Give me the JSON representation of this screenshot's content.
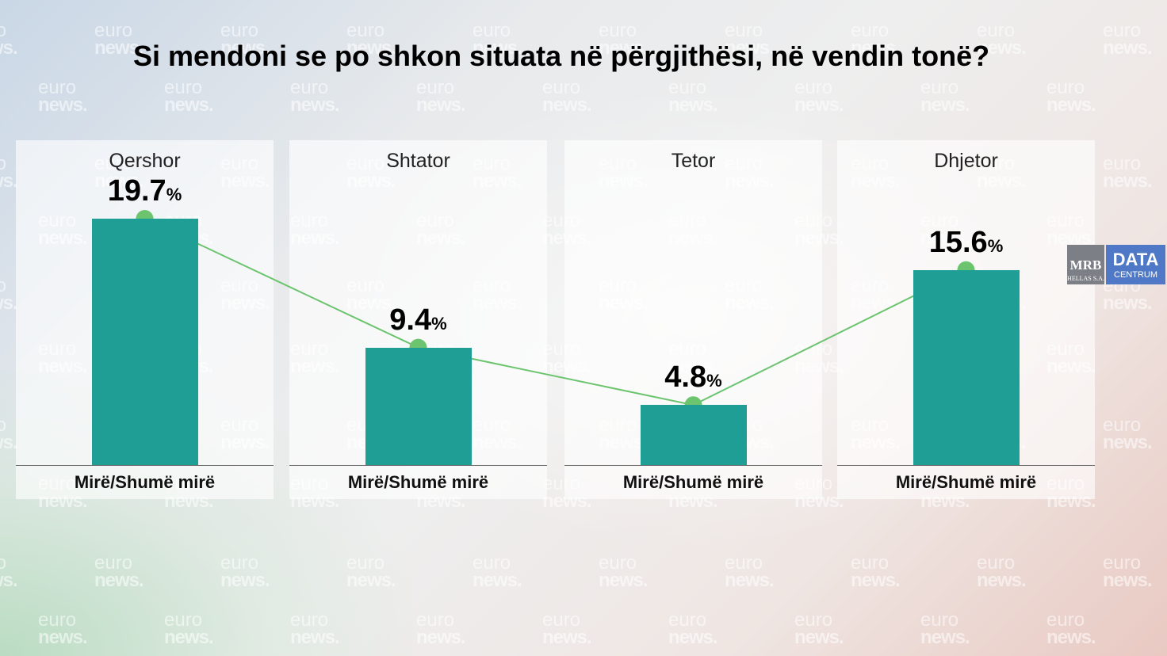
{
  "title": "Si mendoni se po shkon situata në përgjithësi, në vendin tonë?",
  "watermark": {
    "line1": "euro",
    "line2": "news."
  },
  "logo": {
    "mrb": "MRB",
    "mrb_sub": "HELLAS S.A.",
    "data": "DATA",
    "data_sub": "CENTRUM"
  },
  "colors": {
    "bar": "#1f9e95",
    "line": "#6cc46f",
    "marker": "#6cc46f"
  },
  "chart_data": {
    "type": "bar",
    "title": "Si mendoni se po shkon situata në përgjithësi, në vendin tonë?",
    "categories": [
      "Qershor",
      "Shtator",
      "Tetor",
      "Dhjetor"
    ],
    "category_label": "Mirë/Shumë mirë",
    "unit": "%",
    "series": [
      {
        "values": [
          19.7,
          9.4,
          4.8,
          15.6
        ]
      }
    ],
    "value_labels": [
      "19.7",
      "9.4",
      "4.8",
      "15.6"
    ],
    "overlay": "line with markers connecting bar tops",
    "ylim": [
      0,
      22
    ],
    "grid": false,
    "legend": "none"
  }
}
